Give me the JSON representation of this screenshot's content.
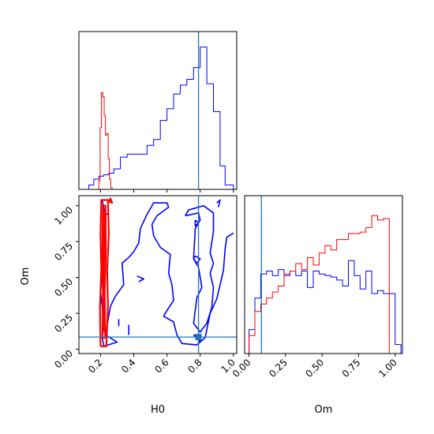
{
  "chart_data": {
    "type": "corner",
    "parameters": [
      "H0",
      "Om"
    ],
    "axis_labels": {
      "bottom_left_x": "H0",
      "bottom_left_y": "Om",
      "bottom_right_x": "Om"
    },
    "xlim_H0": [
      0.07,
      1.02
    ],
    "ylim_Om": [
      -0.03,
      1.07
    ],
    "xlim_Om": [
      -0.03,
      1.05
    ],
    "ticks_H0": [
      "0.2",
      "0.4",
      "0.6",
      "0.8",
      "1.0"
    ],
    "ticks_Om_y": [
      "0.00",
      "0.25",
      "0.50",
      "0.75",
      "1.00"
    ],
    "ticks_Om_x": [
      "0.00",
      "0.25",
      "0.50",
      "0.75",
      "1.00"
    ],
    "truth": {
      "H0": 0.79,
      "Om": 0.085
    },
    "colors": {
      "posterior_wide": "#0000ff",
      "posterior_narrow": "#ff0000",
      "truth": "#1f77b4"
    },
    "series": [
      {
        "panel": "H0-marginal",
        "color": "#0000ff",
        "bin_edges": [
          0.09,
          0.13,
          0.16,
          0.19,
          0.22,
          0.25,
          0.28,
          0.32,
          0.36,
          0.4,
          0.44,
          0.48,
          0.52,
          0.56,
          0.6,
          0.64,
          0.68,
          0.72,
          0.76,
          0.8,
          0.84,
          0.88,
          0.92,
          0.95,
          1.0
        ],
        "counts": [
          0.0,
          0.03,
          0.07,
          0.09,
          0.1,
          0.11,
          0.14,
          0.22,
          0.24,
          0.24,
          0.24,
          0.3,
          0.34,
          0.47,
          0.55,
          0.65,
          0.71,
          0.75,
          0.83,
          0.97,
          0.72,
          0.53,
          0.16,
          0.03
        ]
      },
      {
        "panel": "H0-marginal",
        "color": "#ff0000",
        "bin_edges": [
          0.19,
          0.198,
          0.206,
          0.214,
          0.222,
          0.23,
          0.238,
          0.246,
          0.254,
          0.262,
          0.27
        ],
        "counts": [
          0.06,
          0.42,
          0.66,
          0.63,
          0.5,
          0.37,
          0.38,
          0.21,
          0.07,
          0.01
        ]
      },
      {
        "panel": "Om-marginal",
        "color": "#0000ff",
        "bin_edges": [
          0.0,
          0.04,
          0.08,
          0.12,
          0.16,
          0.2,
          0.24,
          0.28,
          0.32,
          0.36,
          0.4,
          0.44,
          0.48,
          0.52,
          0.56,
          0.6,
          0.64,
          0.68,
          0.72,
          0.76,
          0.8,
          0.84,
          0.88,
          0.92,
          0.96,
          1.0,
          1.04
        ],
        "counts": [
          0.16,
          0.37,
          0.53,
          0.55,
          0.52,
          0.56,
          0.52,
          0.55,
          0.52,
          0.55,
          0.44,
          0.55,
          0.53,
          0.52,
          0.51,
          0.49,
          0.45,
          0.62,
          0.52,
          0.43,
          0.55,
          0.4,
          0.42,
          0.4,
          0.4,
          0.06
        ]
      },
      {
        "panel": "Om-marginal",
        "color": "#ff0000",
        "bin_edges": [
          0.0,
          0.04,
          0.08,
          0.12,
          0.16,
          0.2,
          0.24,
          0.28,
          0.32,
          0.36,
          0.4,
          0.44,
          0.48,
          0.52,
          0.56,
          0.6,
          0.64,
          0.68,
          0.72,
          0.76,
          0.8,
          0.84,
          0.88,
          0.92,
          0.96,
          1.0
        ],
        "counts": [
          0.12,
          0.28,
          0.33,
          0.37,
          0.41,
          0.45,
          0.53,
          0.55,
          0.6,
          0.56,
          0.64,
          0.59,
          0.67,
          0.72,
          0.69,
          0.76,
          0.76,
          0.8,
          0.8,
          0.81,
          0.84,
          0.92,
          0.89,
          0.9,
          0.0
        ]
      },
      {
        "panel": "H0-Om-joint",
        "color": "#0000ff",
        "contours": [
          [
            [
              0.21,
              1.04
            ],
            [
              0.22,
              0.98
            ],
            [
              0.23,
              0.9
            ],
            [
              0.22,
              0.7
            ],
            [
              0.21,
              0.5
            ],
            [
              0.2,
              0.4
            ],
            [
              0.21,
              0.3
            ],
            [
              0.22,
              0.15
            ],
            [
              0.21,
              0.08
            ],
            [
              0.22,
              0.02
            ],
            [
              0.3,
              0.05
            ],
            [
              0.23,
              0.1
            ],
            [
              0.26,
              0.3
            ],
            [
              0.29,
              0.37
            ],
            [
              0.34,
              0.45
            ],
            [
              0.33,
              0.6
            ],
            [
              0.37,
              0.64
            ],
            [
              0.4,
              0.68
            ],
            [
              0.43,
              0.74
            ],
            [
              0.44,
              0.84
            ],
            [
              0.48,
              0.94
            ],
            [
              0.52,
              1.02
            ],
            [
              0.6,
              1.02
            ],
            [
              0.61,
              0.99
            ],
            [
              0.54,
              0.93
            ],
            [
              0.51,
              0.87
            ],
            [
              0.52,
              0.79
            ],
            [
              0.56,
              0.71
            ],
            [
              0.62,
              0.66
            ],
            [
              0.61,
              0.53
            ],
            [
              0.63,
              0.45
            ],
            [
              0.64,
              0.34
            ],
            [
              0.6,
              0.27
            ],
            [
              0.58,
              0.23
            ],
            [
              0.64,
              0.19
            ],
            [
              0.66,
              0.1
            ],
            [
              0.69,
              0.04
            ],
            [
              0.78,
              0.03
            ],
            [
              0.83,
              0.08
            ],
            [
              0.86,
              0.25
            ],
            [
              0.9,
              0.35
            ],
            [
              0.94,
              0.55
            ],
            [
              0.95,
              0.7
            ],
            [
              0.96,
              0.78
            ],
            [
              1.0,
              0.81
            ]
          ],
          [
            [
              0.71,
              0.93
            ],
            [
              0.79,
              0.95
            ],
            [
              0.8,
              0.9
            ],
            [
              0.77,
              0.84
            ],
            [
              0.76,
              0.63
            ],
            [
              0.79,
              0.57
            ],
            [
              0.81,
              0.43
            ],
            [
              0.78,
              0.36
            ],
            [
              0.76,
              0.18
            ],
            [
              0.8,
              0.12
            ],
            [
              0.84,
              0.18
            ],
            [
              0.87,
              0.29
            ],
            [
              0.88,
              0.43
            ],
            [
              0.86,
              0.53
            ],
            [
              0.88,
              0.6
            ],
            [
              0.86,
              0.67
            ],
            [
              0.88,
              0.82
            ],
            [
              0.88,
              0.95
            ],
            [
              0.82,
              1.0
            ],
            [
              0.73,
              0.97
            ],
            [
              0.71,
              0.93
            ]
          ],
          [
            [
              0.77,
              0.9
            ],
            [
              0.79,
              0.88
            ],
            [
              0.77,
              0.86
            ],
            [
              0.77,
              0.9
            ]
          ],
          [
            [
              0.77,
              0.65
            ],
            [
              0.8,
              0.63
            ],
            [
              0.78,
              0.6
            ],
            [
              0.76,
              0.63
            ],
            [
              0.77,
              0.65
            ]
          ],
          [
            [
              0.76,
              0.1
            ],
            [
              0.8,
              0.08
            ],
            [
              0.8,
              0.05
            ],
            [
              0.76,
              0.1
            ]
          ],
          [
            [
              0.9,
              1.02
            ],
            [
              0.92,
              1.04
            ],
            [
              0.91,
              0.99
            ]
          ],
          [
            [
              0.31,
              0.21
            ],
            [
              0.31,
              0.16
            ]
          ],
          [
            [
              0.37,
              0.17
            ],
            [
              0.37,
              0.1
            ]
          ],
          [
            [
              0.22,
              0.93
            ],
            [
              0.25,
              0.95
            ]
          ],
          [
            [
              0.42,
              0.51
            ],
            [
              0.46,
              0.49
            ],
            [
              0.43,
              0.47
            ]
          ]
        ]
      },
      {
        "panel": "H0-Om-joint",
        "color": "#ff0000",
        "contours": [
          [
            [
              0.2,
              0.02
            ],
            [
              0.197,
              0.3
            ],
            [
              0.205,
              0.55
            ],
            [
              0.2,
              0.8
            ],
            [
              0.205,
              1.04
            ],
            [
              0.245,
              1.04
            ],
            [
              0.25,
              0.8
            ],
            [
              0.24,
              0.55
            ],
            [
              0.245,
              0.3
            ],
            [
              0.235,
              0.02
            ],
            [
              0.2,
              0.02
            ]
          ],
          [
            [
              0.212,
              0.08
            ],
            [
              0.215,
              0.4
            ],
            [
              0.212,
              0.7
            ],
            [
              0.215,
              1.0
            ],
            [
              0.23,
              1.0
            ],
            [
              0.232,
              0.7
            ],
            [
              0.225,
              0.4
            ],
            [
              0.228,
              0.08
            ],
            [
              0.212,
              0.08
            ]
          ],
          [
            [
              0.218,
              0.15
            ],
            [
              0.22,
              0.5
            ],
            [
              0.219,
              0.95
            ],
            [
              0.224,
              0.95
            ],
            [
              0.223,
              0.5
            ],
            [
              0.222,
              0.15
            ],
            [
              0.218,
              0.15
            ]
          ],
          [
            [
              0.25,
              1.03
            ],
            [
              0.26,
              1.05
            ],
            [
              0.27,
              1.02
            ],
            [
              0.25,
              1.03
            ]
          ]
        ]
      }
    ]
  }
}
